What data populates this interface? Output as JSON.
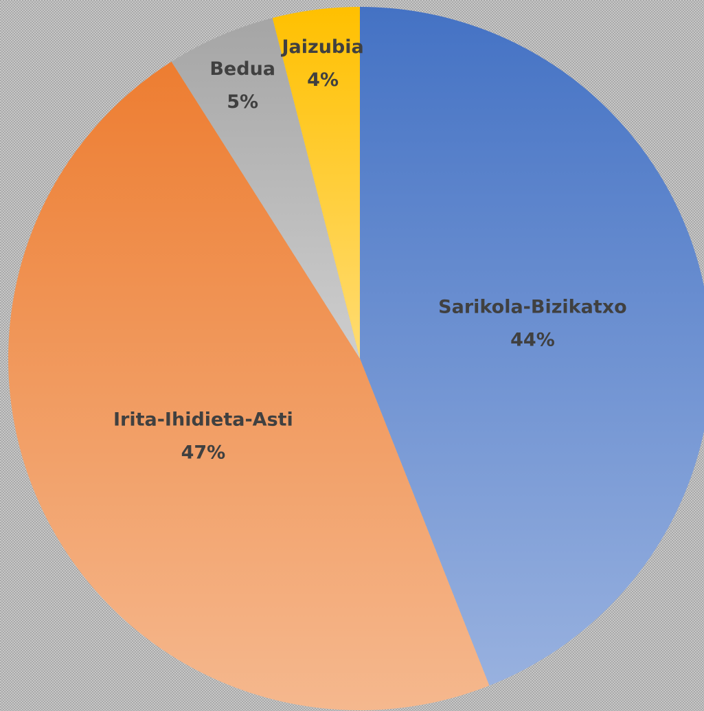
{
  "chart_data": {
    "type": "pie",
    "categories": [
      "Sarikola-Bizikatxo",
      "Irita-Ihidieta-Asti",
      "Bedua",
      "Jaizubia"
    ],
    "values": [
      44,
      47,
      5,
      4
    ],
    "value_labels": [
      "44%",
      "47%",
      "5%",
      "4%"
    ],
    "colors": [
      "#4472c4",
      "#ed7d31",
      "#a5a5a5",
      "#ffc000"
    ]
  }
}
